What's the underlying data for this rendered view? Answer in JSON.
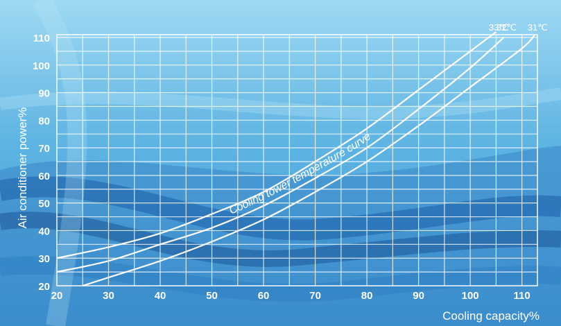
{
  "chart_data": {
    "type": "line",
    "xlabel": "Cooling capacity%",
    "ylabel": "Air conditioner power%",
    "annotation": "Cooling tower temperature curve",
    "x_ticks": [
      20,
      30,
      40,
      50,
      60,
      70,
      80,
      90,
      100,
      110
    ],
    "y_ticks": [
      20,
      30,
      40,
      50,
      60,
      70,
      80,
      90,
      100,
      110
    ],
    "xlim": [
      20,
      113
    ],
    "ylim": [
      20,
      111
    ],
    "grid": true,
    "series": [
      {
        "name": "33℃",
        "x": [
          20,
          30,
          40,
          50,
          60,
          70,
          80,
          90,
          100,
          105
        ],
        "y": [
          30,
          34,
          39,
          46,
          54,
          65,
          77,
          91,
          105,
          112
        ]
      },
      {
        "name": "32℃",
        "x": [
          20,
          30,
          40,
          50,
          60,
          70,
          80,
          90,
          100,
          106.5
        ],
        "y": [
          25,
          29,
          35,
          41,
          49,
          59,
          70,
          84,
          99,
          110
        ]
      },
      {
        "name": "31℃",
        "x": [
          25,
          30,
          40,
          50,
          60,
          70,
          80,
          90,
          100,
          110,
          112.5
        ],
        "y": [
          20,
          23,
          29,
          36,
          44,
          54,
          65,
          78,
          92,
          106,
          111
        ]
      }
    ],
    "colors": {
      "line": "#ffffff",
      "grid": "#ffffff",
      "background_light": "#8fd0ef",
      "background_dark": "#1f5fa8"
    }
  }
}
